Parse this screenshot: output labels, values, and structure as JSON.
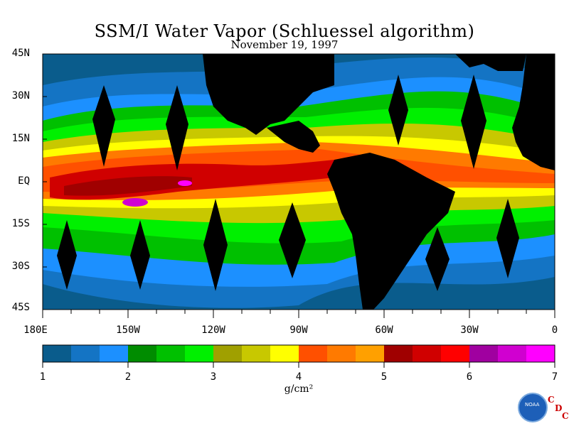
{
  "title": "SSM/I Water Vapor (Schluessel algorithm)",
  "subtitle": "November 19, 1997",
  "lat_labels": [
    "45N",
    "30N",
    "15N",
    "EQ",
    "15S",
    "30S",
    "45S"
  ],
  "lon_labels": [
    "180E",
    "150W",
    "120W",
    "90W",
    "60W",
    "30W",
    "0"
  ],
  "colorbar": {
    "ticks": [
      "1",
      "2",
      "3",
      "4",
      "5",
      "6",
      "7"
    ],
    "units": "g/cm²",
    "colors": [
      "#0a5c8c",
      "#1474c4",
      "#1c90ff",
      "#008c00",
      "#00c000",
      "#00f000",
      "#a0a000",
      "#c8c800",
      "#ffff00",
      "#ff5000",
      "#ff7a00",
      "#ffa000",
      "#a00000",
      "#d00000",
      "#ff0000",
      "#a000a0",
      "#d000d0",
      "#ff00ff"
    ]
  },
  "logo": {
    "agency": "NOAA",
    "letters": [
      "C",
      "D",
      "C"
    ]
  }
}
